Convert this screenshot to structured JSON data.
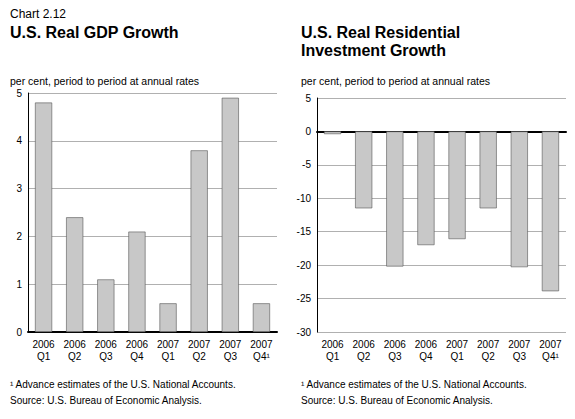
{
  "figure_label": "Chart 2.12",
  "chart_data": [
    {
      "type": "bar",
      "title": "U.S. Real GDP Growth",
      "y_label": "per cent, period to period at annual rates",
      "categories": [
        "2006\nQ1",
        "2006\nQ2",
        "2006\nQ3",
        "2006\nQ4",
        "2007\nQ1",
        "2007\nQ2",
        "2007\nQ3",
        "2007\nQ4¹"
      ],
      "values": [
        4.8,
        2.4,
        1.1,
        2.1,
        0.6,
        3.8,
        4.9,
        0.6
      ],
      "color": "#c8c8c8",
      "ylim": [
        0,
        5
      ],
      "yticks": [
        0,
        1,
        2,
        3,
        4,
        5
      ],
      "grid": true,
      "notes": [
        "¹ Advance estimates of the U.S. National Accounts.",
        "Source: U.S. Bureau of Economic Analysis."
      ]
    },
    {
      "type": "bar",
      "title": "U.S. Real Residential Investment Growth",
      "y_label": "per cent, period to period at annual rates",
      "categories": [
        "2006\nQ1",
        "2006\nQ2",
        "2006\nQ3",
        "2006\nQ4",
        "2007\nQ1",
        "2007\nQ2",
        "2007\nQ3",
        "2007\nQ4¹"
      ],
      "values": [
        -0.4,
        -11.5,
        -20.2,
        -17.0,
        -16.1,
        -11.5,
        -20.3,
        -23.9
      ],
      "color": "#c8c8c8",
      "ylim": [
        -30,
        5
      ],
      "yticks": [
        -30,
        -25,
        -20,
        -15,
        -10,
        -5,
        0,
        5
      ],
      "grid": true,
      "notes": [
        "¹ Advance estimates of the U.S. National Accounts.",
        "Source: U.S. Bureau of Economic Analysis."
      ]
    }
  ]
}
